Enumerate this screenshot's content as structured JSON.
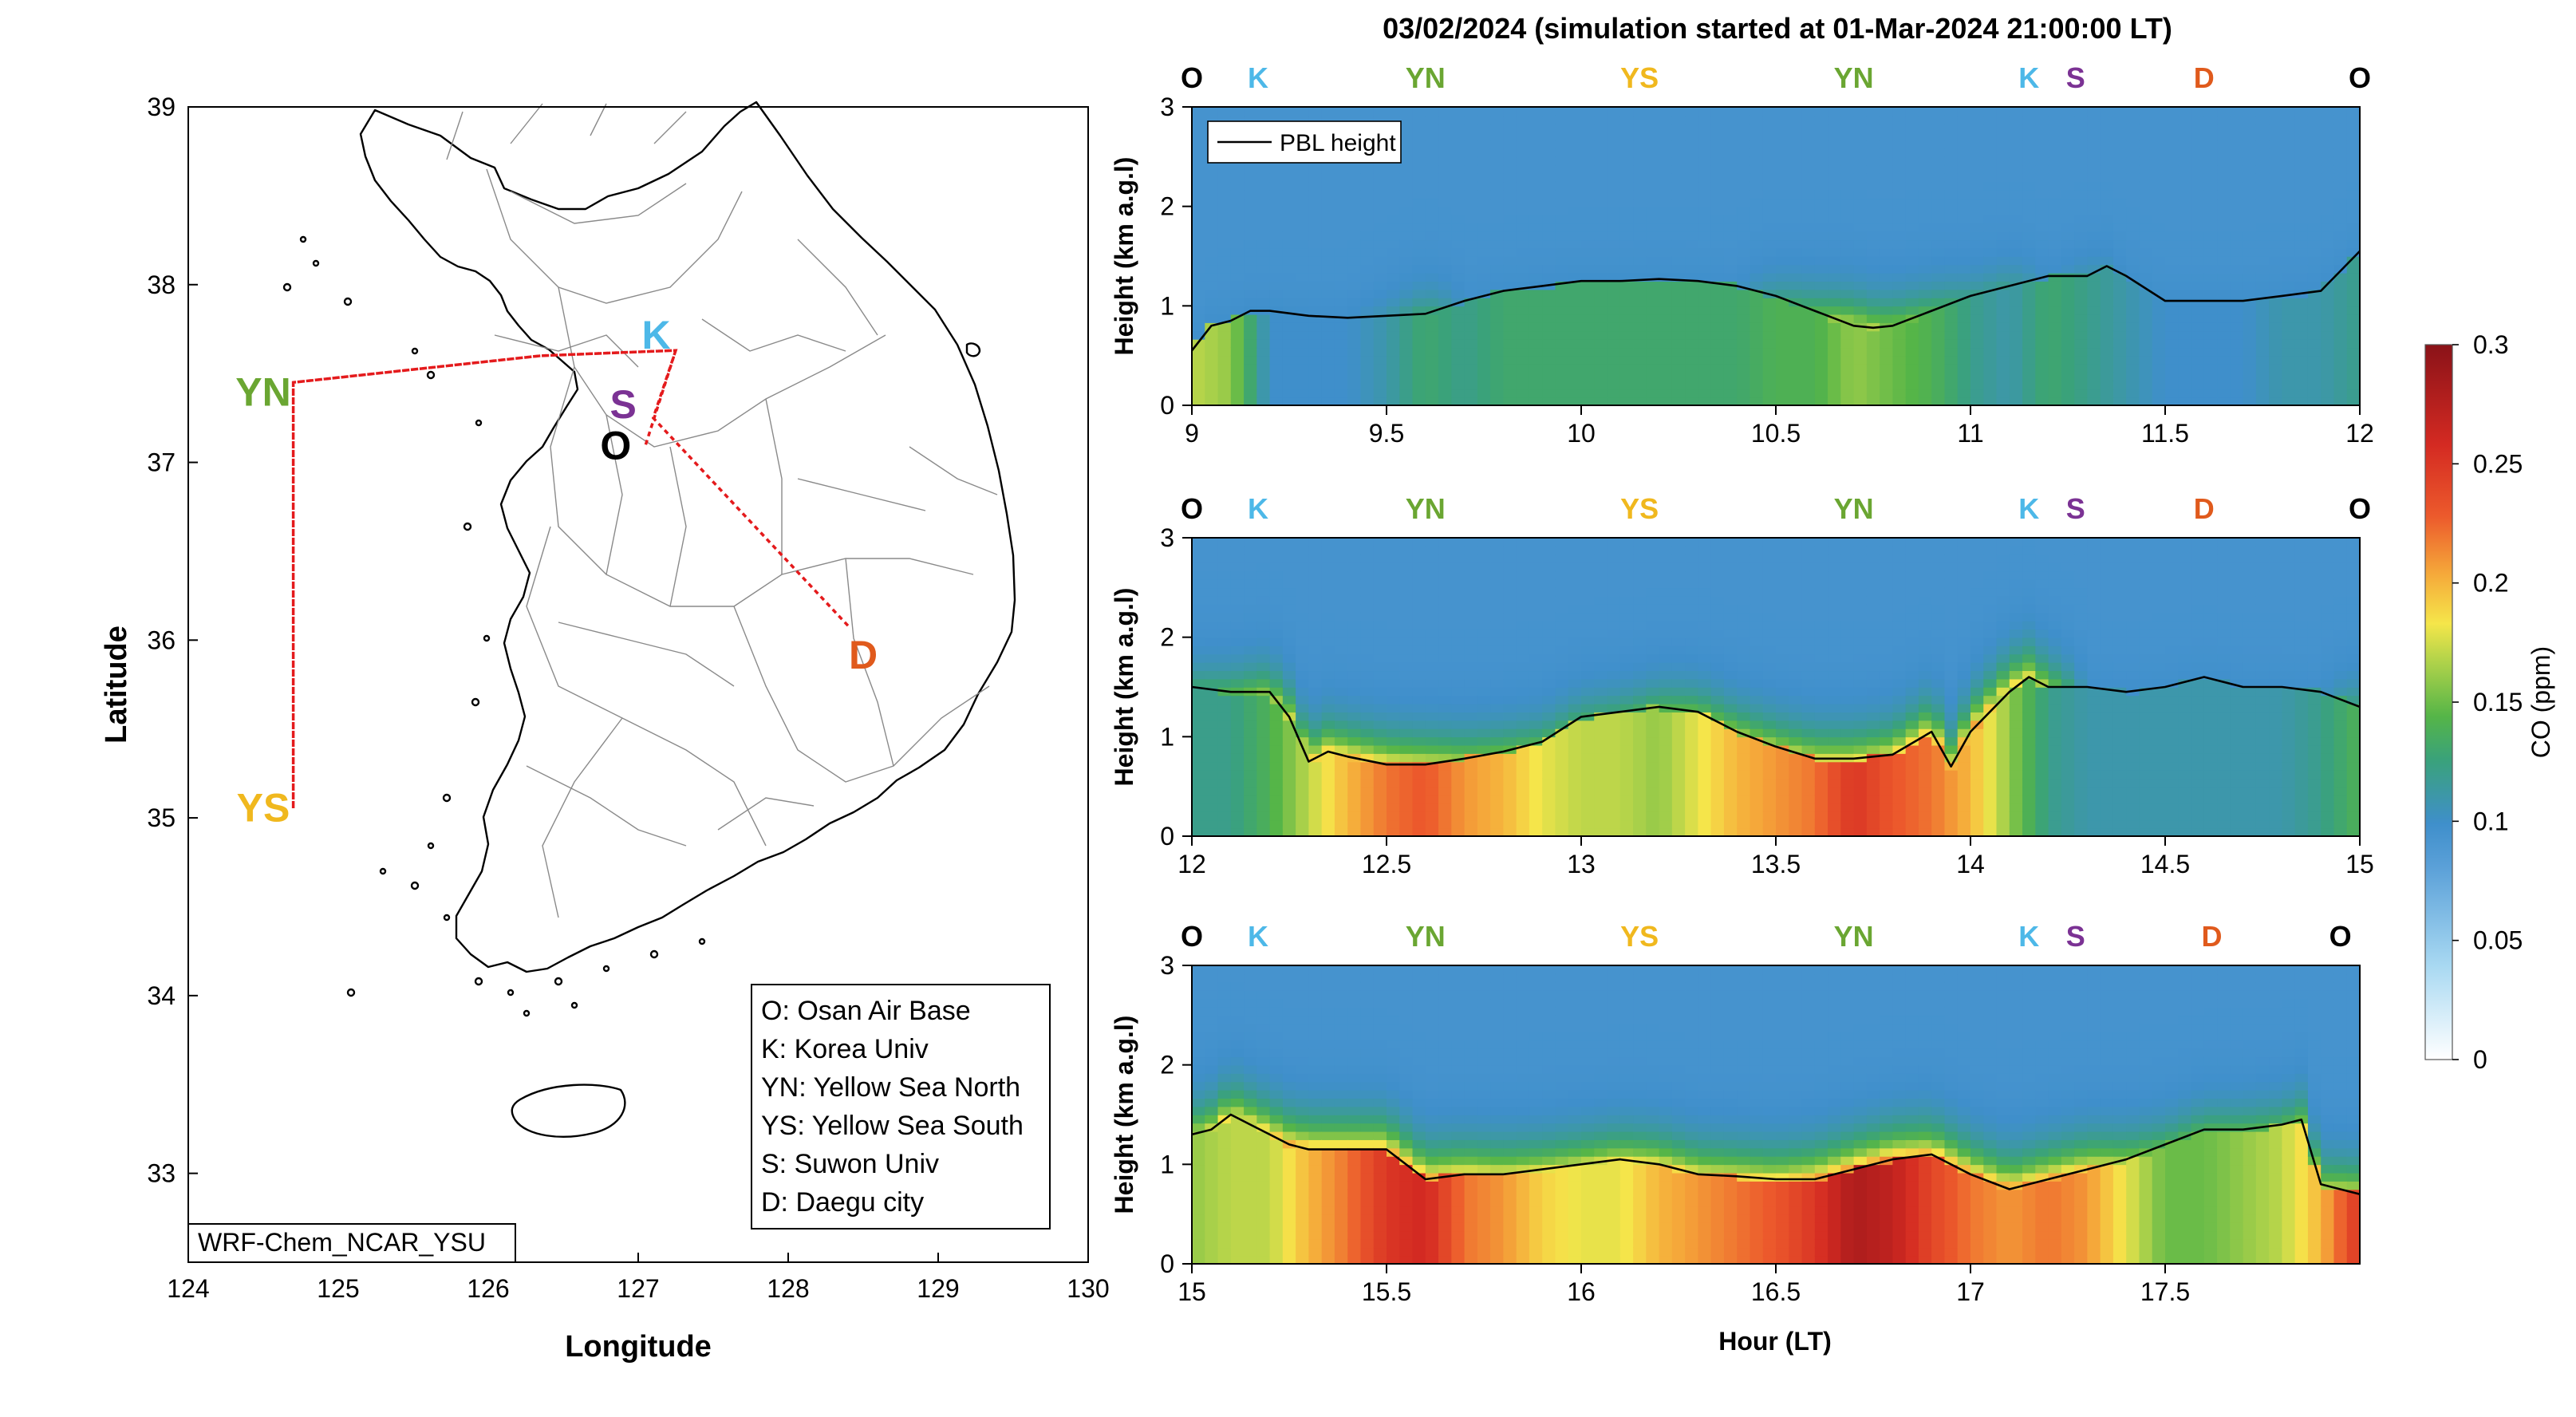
{
  "colors": {
    "osan": "#000000",
    "korea_univ": "#4db8e8",
    "yellow_sea_north": "#6aa632",
    "yellow_sea_south": "#f0b81e",
    "suwon_univ": "#7b3294",
    "daegu": "#e05a1c",
    "flight_track": "#e41a1c",
    "pbl_line": "#000000"
  },
  "map": {
    "xlabel": "Longitude",
    "ylabel": "Latitude",
    "xlim": [
      124,
      130
    ],
    "ylim": [
      32.5,
      39
    ],
    "xticks": [
      "124",
      "125",
      "126",
      "127",
      "128",
      "129",
      "130"
    ],
    "yticks": [
      "33",
      "34",
      "35",
      "36",
      "37",
      "38",
      "39"
    ],
    "model_label": "WRF-Chem_NCAR_YSU",
    "sites": [
      {
        "code": "O",
        "lon": 126.85,
        "lat": 37.1,
        "color_key": "osan"
      },
      {
        "code": "K",
        "lon": 127.12,
        "lat": 37.72,
        "color_key": "korea_univ"
      },
      {
        "code": "S",
        "lon": 126.9,
        "lat": 37.33,
        "color_key": "suwon_univ"
      },
      {
        "code": "D",
        "lon": 128.5,
        "lat": 35.92,
        "color_key": "daegu"
      },
      {
        "code": "YN",
        "lon": 124.5,
        "lat": 37.4,
        "color_key": "yellow_sea_north"
      },
      {
        "code": "YS",
        "lon": 124.5,
        "lat": 35.06,
        "color_key": "yellow_sea_south"
      }
    ],
    "track": [
      [
        127.05,
        37.1
      ],
      [
        127.25,
        37.63
      ],
      [
        126.35,
        37.6
      ],
      [
        124.7,
        37.45
      ],
      [
        124.7,
        35.05
      ],
      [
        124.7,
        37.45
      ],
      [
        126.35,
        37.6
      ],
      [
        127.25,
        37.63
      ],
      [
        127.1,
        37.25
      ],
      [
        128.4,
        36.08
      ]
    ],
    "legend": [
      "O: Osan Air Base",
      "K: Korea Univ",
      "YN: Yellow Sea North",
      "YS: Yellow Sea South",
      "S: Suwon Univ",
      "D: Daegu city"
    ]
  },
  "chart_data": {
    "type": "heatmap",
    "title": "03/02/2024 (simulation started at 01-Mar-2024 21:00:00 LT)",
    "xlabel": "Hour (LT)",
    "ylabel": "Height (km a.g.l)",
    "legend": {
      "entry": "PBL height",
      "placement": "top-left"
    },
    "colorbar": {
      "label": "CO (ppm)",
      "range": [
        0,
        0.3
      ],
      "ticks": [
        "0",
        "0.05",
        "0.1",
        "0.15",
        "0.2",
        "0.25",
        "0.3"
      ]
    },
    "panels": [
      {
        "xlim": [
          9,
          12
        ],
        "ylim": [
          0,
          3
        ],
        "xticks": [
          "9",
          "9.5",
          "10",
          "10.5",
          "11",
          "11.5",
          "12"
        ],
        "yticks": [
          "0",
          "1",
          "2",
          "3"
        ],
        "site_labels": [
          {
            "code": "O",
            "hour": 9.0,
            "color_key": "osan"
          },
          {
            "code": "K",
            "hour": 9.17,
            "color_key": "korea_univ"
          },
          {
            "code": "YN",
            "hour": 9.6,
            "color_key": "yellow_sea_north"
          },
          {
            "code": "YS",
            "hour": 10.15,
            "color_key": "yellow_sea_south"
          },
          {
            "code": "YN",
            "hour": 10.7,
            "color_key": "yellow_sea_north"
          },
          {
            "code": "K",
            "hour": 11.15,
            "color_key": "korea_univ"
          },
          {
            "code": "S",
            "hour": 11.27,
            "color_key": "suwon_univ"
          },
          {
            "code": "D",
            "hour": 11.6,
            "color_key": "daegu"
          },
          {
            "code": "O",
            "hour": 12.0,
            "color_key": "osan"
          }
        ],
        "pbl_height": {
          "x": [
            9.0,
            9.05,
            9.1,
            9.15,
            9.2,
            9.3,
            9.4,
            9.5,
            9.6,
            9.7,
            9.8,
            9.9,
            10.0,
            10.1,
            10.2,
            10.3,
            10.4,
            10.5,
            10.6,
            10.7,
            10.75,
            10.8,
            10.9,
            11.0,
            11.1,
            11.2,
            11.3,
            11.35,
            11.4,
            11.5,
            11.6,
            11.7,
            11.8,
            11.9,
            12.0
          ],
          "y": [
            0.55,
            0.8,
            0.85,
            0.95,
            0.95,
            0.9,
            0.88,
            0.9,
            0.92,
            1.05,
            1.15,
            1.2,
            1.25,
            1.25,
            1.27,
            1.25,
            1.2,
            1.1,
            0.95,
            0.8,
            0.78,
            0.8,
            0.95,
            1.1,
            1.2,
            1.3,
            1.3,
            1.4,
            1.3,
            1.05,
            1.05,
            1.05,
            1.1,
            1.15,
            1.55
          ]
        },
        "co_ppm": {
          "x": [
            9.0,
            9.1,
            9.2,
            9.3,
            9.4,
            9.5,
            9.6,
            9.7,
            9.8,
            9.9,
            10.0,
            10.1,
            10.2,
            10.3,
            10.4,
            10.5,
            10.6,
            10.7,
            10.8,
            10.9,
            11.0,
            11.1,
            11.2,
            11.3,
            11.4,
            11.5,
            11.6,
            11.7,
            11.8,
            11.9,
            12.0
          ],
          "surface": [
            0.17,
            0.16,
            0.1,
            0.1,
            0.1,
            0.11,
            0.13,
            0.12,
            0.13,
            0.13,
            0.13,
            0.13,
            0.13,
            0.13,
            0.13,
            0.14,
            0.14,
            0.16,
            0.15,
            0.14,
            0.12,
            0.11,
            0.13,
            0.12,
            0.11,
            0.1,
            0.1,
            0.1,
            0.11,
            0.11,
            0.12
          ],
          "aloft": [
            0.1,
            0.1,
            0.1,
            0.1,
            0.1,
            0.11,
            0.13,
            0.1,
            0.1,
            0.1,
            0.1,
            0.1,
            0.1,
            0.1,
            0.1,
            0.12,
            0.14,
            0.18,
            0.16,
            0.14,
            0.12,
            0.12,
            0.1,
            0.11,
            0.1,
            0.1,
            0.1,
            0.1,
            0.1,
            0.1,
            0.1
          ]
        }
      },
      {
        "xlim": [
          12,
          15
        ],
        "ylim": [
          0,
          3
        ],
        "xticks": [
          "12",
          "12.5",
          "13",
          "13.5",
          "14",
          "14.5",
          "15"
        ],
        "yticks": [
          "0",
          "1",
          "2",
          "3"
        ],
        "site_labels": [
          {
            "code": "O",
            "hour": 12.0,
            "color_key": "osan"
          },
          {
            "code": "K",
            "hour": 12.17,
            "color_key": "korea_univ"
          },
          {
            "code": "YN",
            "hour": 12.6,
            "color_key": "yellow_sea_north"
          },
          {
            "code": "YS",
            "hour": 13.15,
            "color_key": "yellow_sea_south"
          },
          {
            "code": "YN",
            "hour": 13.7,
            "color_key": "yellow_sea_north"
          },
          {
            "code": "K",
            "hour": 14.15,
            "color_key": "korea_univ"
          },
          {
            "code": "S",
            "hour": 14.27,
            "color_key": "suwon_univ"
          },
          {
            "code": "D",
            "hour": 14.6,
            "color_key": "daegu"
          },
          {
            "code": "O",
            "hour": 15.0,
            "color_key": "osan"
          }
        ],
        "pbl_height": {
          "x": [
            12.0,
            12.1,
            12.2,
            12.25,
            12.3,
            12.35,
            12.4,
            12.5,
            12.6,
            12.7,
            12.8,
            12.9,
            13.0,
            13.1,
            13.2,
            13.3,
            13.4,
            13.5,
            13.6,
            13.7,
            13.8,
            13.9,
            13.95,
            14.0,
            14.1,
            14.15,
            14.2,
            14.3,
            14.4,
            14.5,
            14.6,
            14.7,
            14.8,
            14.9,
            15.0
          ],
          "y": [
            1.5,
            1.45,
            1.45,
            1.2,
            0.75,
            0.85,
            0.8,
            0.72,
            0.72,
            0.78,
            0.85,
            0.95,
            1.2,
            1.25,
            1.3,
            1.25,
            1.05,
            0.9,
            0.78,
            0.78,
            0.82,
            1.05,
            0.7,
            1.05,
            1.45,
            1.6,
            1.5,
            1.5,
            1.45,
            1.5,
            1.6,
            1.5,
            1.5,
            1.45,
            1.3
          ]
        },
        "co_ppm": {
          "x": [
            12.0,
            12.1,
            12.2,
            12.3,
            12.4,
            12.5,
            12.6,
            12.7,
            12.8,
            12.9,
            13.0,
            13.1,
            13.2,
            13.3,
            13.4,
            13.5,
            13.6,
            13.7,
            13.8,
            13.9,
            14.0,
            14.1,
            14.2,
            14.3,
            14.4,
            14.5,
            14.6,
            14.7,
            14.8,
            14.9,
            15.0
          ],
          "surface": [
            0.12,
            0.12,
            0.14,
            0.17,
            0.2,
            0.22,
            0.23,
            0.21,
            0.2,
            0.18,
            0.17,
            0.17,
            0.16,
            0.18,
            0.2,
            0.21,
            0.22,
            0.25,
            0.23,
            0.22,
            0.2,
            0.16,
            0.12,
            0.11,
            0.11,
            0.11,
            0.11,
            0.11,
            0.11,
            0.12,
            0.14
          ],
          "aloft": [
            0.13,
            0.14,
            0.16,
            0.19,
            0.2,
            0.2,
            0.19,
            0.16,
            0.15,
            0.14,
            0.13,
            0.13,
            0.14,
            0.15,
            0.16,
            0.17,
            0.18,
            0.18,
            0.19,
            0.2,
            0.21,
            0.21,
            0.16,
            0.1,
            0.1,
            0.1,
            0.1,
            0.1,
            0.1,
            0.1,
            0.13
          ]
        }
      },
      {
        "xlim": [
          15,
          18
        ],
        "ylim": [
          0,
          3
        ],
        "xticks": [
          "15",
          "15.5",
          "16",
          "16.5",
          "17",
          "17.5"
        ],
        "yticks": [
          "0",
          "1",
          "2",
          "3"
        ],
        "site_labels": [
          {
            "code": "O",
            "hour": 15.0,
            "color_key": "osan"
          },
          {
            "code": "K",
            "hour": 15.17,
            "color_key": "korea_univ"
          },
          {
            "code": "YN",
            "hour": 15.6,
            "color_key": "yellow_sea_north"
          },
          {
            "code": "YS",
            "hour": 16.15,
            "color_key": "yellow_sea_south"
          },
          {
            "code": "YN",
            "hour": 16.7,
            "color_key": "yellow_sea_north"
          },
          {
            "code": "K",
            "hour": 17.15,
            "color_key": "korea_univ"
          },
          {
            "code": "S",
            "hour": 17.27,
            "color_key": "suwon_univ"
          },
          {
            "code": "D",
            "hour": 17.62,
            "color_key": "daegu"
          },
          {
            "code": "O",
            "hour": 17.95,
            "color_key": "osan"
          }
        ],
        "pbl_height": {
          "x": [
            15.0,
            15.05,
            15.1,
            15.15,
            15.2,
            15.25,
            15.3,
            15.4,
            15.5,
            15.6,
            15.7,
            15.8,
            15.9,
            16.0,
            16.1,
            16.2,
            16.3,
            16.4,
            16.5,
            16.6,
            16.7,
            16.8,
            16.9,
            17.0,
            17.1,
            17.2,
            17.3,
            17.4,
            17.5,
            17.6,
            17.7,
            17.8,
            17.85,
            17.9,
            18.0
          ],
          "y": [
            1.3,
            1.35,
            1.5,
            1.4,
            1.3,
            1.2,
            1.15,
            1.15,
            1.15,
            0.85,
            0.9,
            0.9,
            0.95,
            1.0,
            1.05,
            1.0,
            0.9,
            0.88,
            0.85,
            0.85,
            0.95,
            1.05,
            1.1,
            0.9,
            0.75,
            0.85,
            0.95,
            1.05,
            1.2,
            1.35,
            1.35,
            1.4,
            1.45,
            0.8,
            0.7
          ]
        },
        "co_ppm": {
          "x": [
            15.0,
            15.1,
            15.2,
            15.3,
            15.4,
            15.5,
            15.6,
            15.7,
            15.8,
            15.9,
            16.0,
            16.1,
            16.2,
            16.3,
            16.4,
            16.5,
            16.6,
            16.7,
            16.8,
            16.9,
            17.0,
            17.1,
            17.2,
            17.3,
            17.4,
            17.5,
            17.6,
            17.7,
            17.8,
            17.9,
            18.0
          ],
          "surface": [
            0.16,
            0.17,
            0.17,
            0.2,
            0.22,
            0.25,
            0.26,
            0.22,
            0.21,
            0.19,
            0.18,
            0.18,
            0.2,
            0.21,
            0.22,
            0.23,
            0.25,
            0.28,
            0.27,
            0.24,
            0.22,
            0.21,
            0.22,
            0.21,
            0.18,
            0.15,
            0.15,
            0.16,
            0.17,
            0.2,
            0.25
          ],
          "aloft": [
            0.17,
            0.19,
            0.2,
            0.21,
            0.21,
            0.21,
            0.21,
            0.2,
            0.19,
            0.18,
            0.18,
            0.18,
            0.19,
            0.19,
            0.19,
            0.19,
            0.21,
            0.22,
            0.22,
            0.21,
            0.21,
            0.21,
            0.21,
            0.2,
            0.16,
            0.14,
            0.14,
            0.14,
            0.14,
            0.16,
            0.19
          ]
        }
      }
    ]
  }
}
